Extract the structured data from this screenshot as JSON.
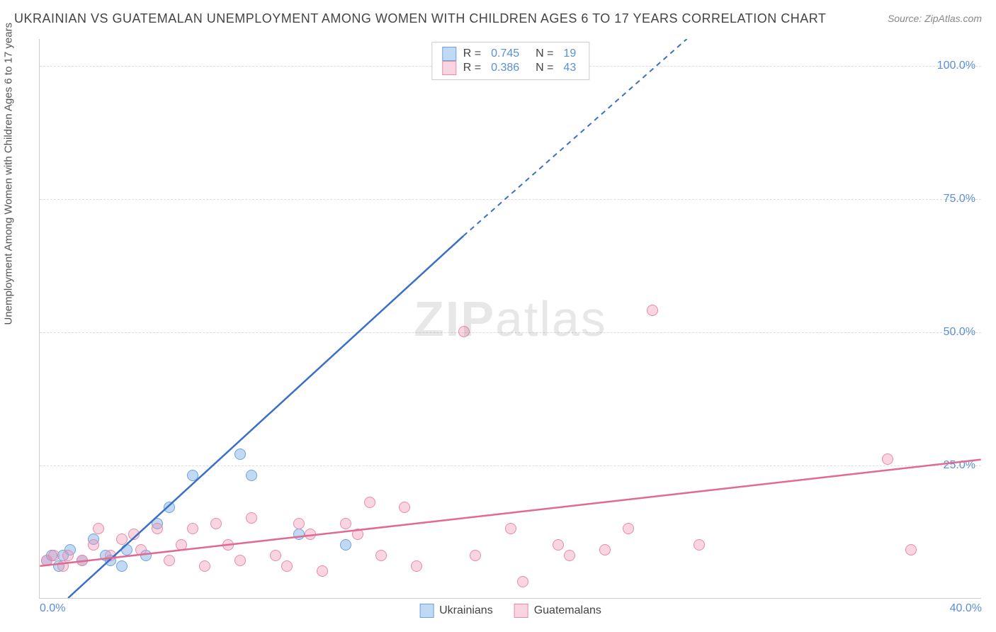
{
  "title": "UKRAINIAN VS GUATEMALAN UNEMPLOYMENT AMONG WOMEN WITH CHILDREN AGES 6 TO 17 YEARS CORRELATION CHART",
  "source": "Source: ZipAtlas.com",
  "y_axis_label": "Unemployment Among Women with Children Ages 6 to 17 years",
  "watermark": {
    "bold": "ZIP",
    "light": "atlas"
  },
  "chart": {
    "type": "scatter",
    "xlim": [
      0,
      40
    ],
    "ylim": [
      0,
      105
    ],
    "y_ticks": [
      25,
      50,
      75,
      100
    ],
    "y_tick_labels": [
      "25.0%",
      "50.0%",
      "75.0%",
      "100.0%"
    ],
    "x_ticks": [
      0,
      40
    ],
    "x_tick_labels": [
      "0.0%",
      "40.0%"
    ],
    "grid_color": "#dddddd",
    "axis_color": "#cccccc",
    "background": "#ffffff",
    "series": [
      {
        "name": "Ukrainians",
        "fill": "rgba(120,170,230,0.45)",
        "stroke": "#6aa3e0",
        "line_color": "#3a6fc9",
        "marker_radius": 8,
        "r_value": "0.745",
        "n_value": "19",
        "regression": {
          "solid_from": [
            1.2,
            0
          ],
          "solid_to": [
            18,
            68
          ],
          "dashed_from": [
            18,
            68
          ],
          "dashed_to": [
            27.5,
            105
          ]
        },
        "points": [
          [
            0.3,
            7
          ],
          [
            0.5,
            8
          ],
          [
            0.8,
            6
          ],
          [
            1.0,
            8
          ],
          [
            1.3,
            9
          ],
          [
            1.8,
            7
          ],
          [
            2.3,
            11
          ],
          [
            2.8,
            8
          ],
          [
            3.0,
            7
          ],
          [
            3.5,
            6
          ],
          [
            3.7,
            9
          ],
          [
            4.5,
            8
          ],
          [
            5.0,
            14
          ],
          [
            5.5,
            17
          ],
          [
            6.5,
            23
          ],
          [
            8.5,
            27
          ],
          [
            9.0,
            23
          ],
          [
            11.0,
            12
          ],
          [
            13.0,
            10
          ]
        ]
      },
      {
        "name": "Guatemalans",
        "fill": "rgba(240,150,180,0.40)",
        "stroke": "#e88aa8",
        "line_color": "#e06a92",
        "marker_radius": 8,
        "r_value": "0.386",
        "n_value": "43",
        "regression": {
          "solid_from": [
            0,
            6
          ],
          "solid_to": [
            40,
            26
          ],
          "dashed_from": null,
          "dashed_to": null
        },
        "points": [
          [
            0.3,
            7
          ],
          [
            0.6,
            8
          ],
          [
            1.0,
            6
          ],
          [
            1.2,
            8
          ],
          [
            1.8,
            7
          ],
          [
            2.3,
            10
          ],
          [
            2.5,
            13
          ],
          [
            3.0,
            8
          ],
          [
            3.5,
            11
          ],
          [
            4.0,
            12
          ],
          [
            4.3,
            9
          ],
          [
            5.0,
            13
          ],
          [
            5.5,
            7
          ],
          [
            6.0,
            10
          ],
          [
            6.5,
            13
          ],
          [
            7.0,
            6
          ],
          [
            7.5,
            14
          ],
          [
            8.0,
            10
          ],
          [
            8.5,
            7
          ],
          [
            9.0,
            15
          ],
          [
            10.0,
            8
          ],
          [
            10.5,
            6
          ],
          [
            11.0,
            14
          ],
          [
            11.5,
            12
          ],
          [
            12.0,
            5
          ],
          [
            13.0,
            14
          ],
          [
            13.5,
            12
          ],
          [
            14.0,
            18
          ],
          [
            14.5,
            8
          ],
          [
            15.5,
            17
          ],
          [
            16.0,
            6
          ],
          [
            18.0,
            50
          ],
          [
            18.5,
            8
          ],
          [
            20.0,
            13
          ],
          [
            20.5,
            3
          ],
          [
            22.0,
            10
          ],
          [
            22.5,
            8
          ],
          [
            24.0,
            9
          ],
          [
            25.0,
            13
          ],
          [
            26.0,
            54
          ],
          [
            28.0,
            10
          ],
          [
            36.0,
            26
          ],
          [
            37.0,
            9
          ]
        ]
      }
    ],
    "legend_bottom": [
      {
        "label": "Ukrainians",
        "fill": "rgba(120,170,230,0.45)",
        "stroke": "#6aa3e0"
      },
      {
        "label": "Guatemalans",
        "fill": "rgba(240,150,180,0.40)",
        "stroke": "#e88aa8"
      }
    ]
  }
}
